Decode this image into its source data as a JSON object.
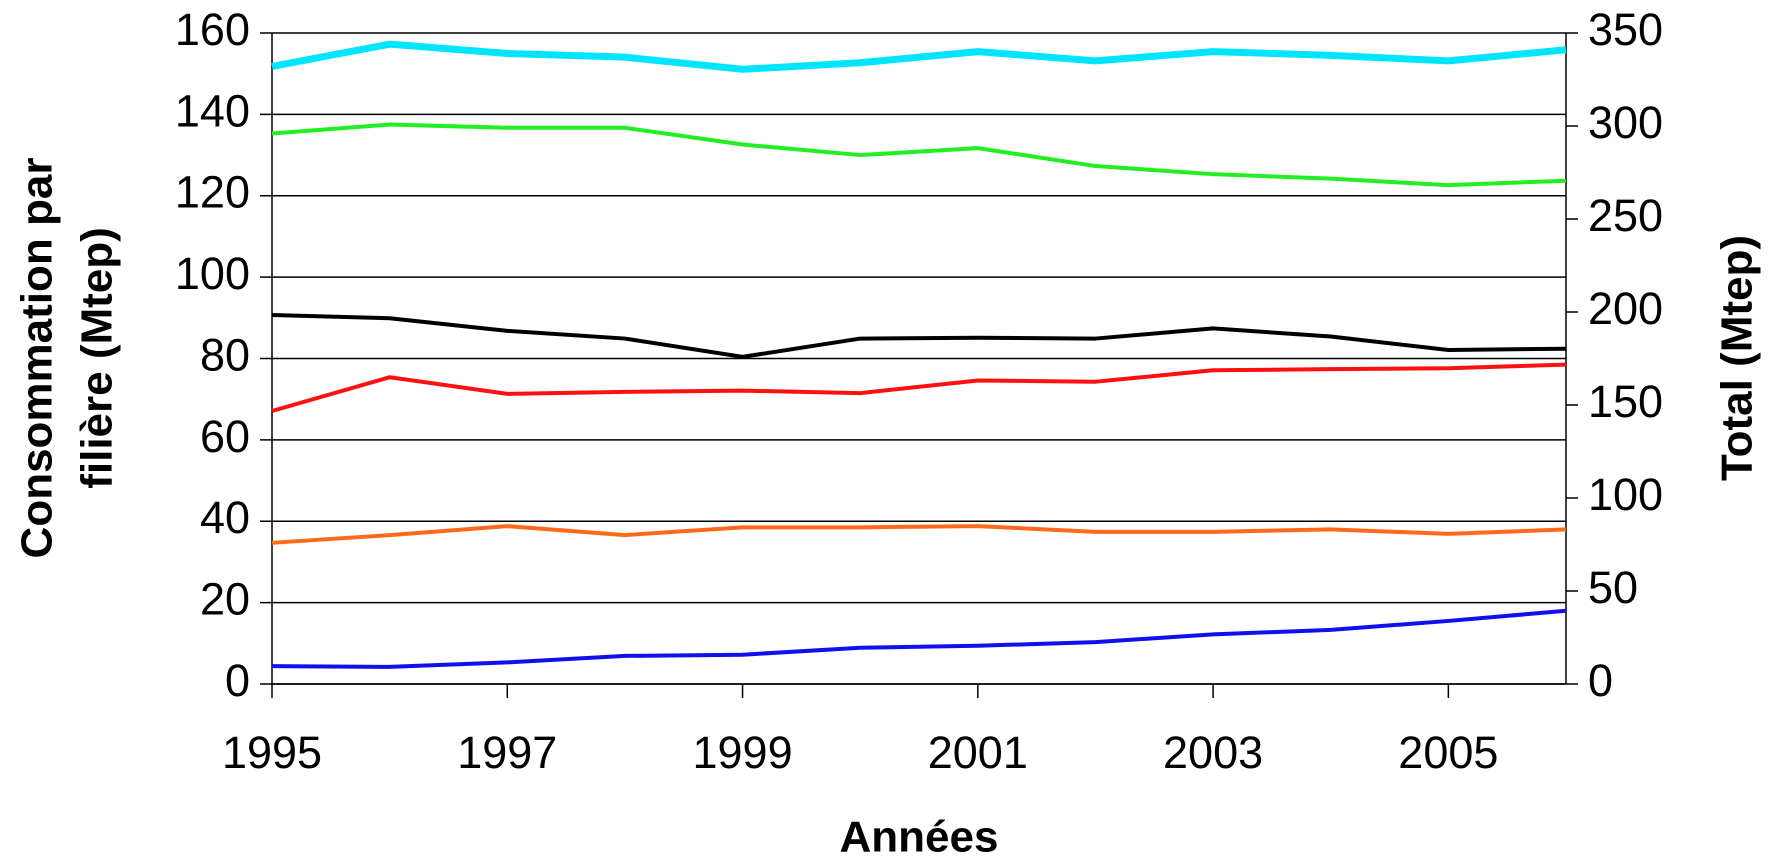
{
  "chart_data": {
    "type": "line",
    "x_label": "Années",
    "y_label": [
      "Consommation par",
      "filière (Mtep)"
    ],
    "y2_label": "Total (Mtep)",
    "x": [
      1995,
      1996,
      1997,
      1998,
      1999,
      2000,
      2001,
      2002,
      2003,
      2004,
      2005,
      2006
    ],
    "xlim": [
      1995,
      2006
    ],
    "xticks": [
      1995,
      1997,
      1999,
      2001,
      2003,
      2005
    ],
    "ylim": [
      0,
      160
    ],
    "yticks": [
      0,
      20,
      40,
      60,
      80,
      100,
      120,
      140,
      160
    ],
    "y2lim": [
      0,
      350
    ],
    "y2ticks": [
      0,
      50,
      100,
      150,
      200,
      250,
      300,
      350
    ],
    "grid": true,
    "series": [
      {
        "color": "#00e5ff",
        "axis": "y2",
        "values": [
          332,
          344,
          339,
          337,
          330.5,
          334,
          340,
          335,
          340,
          338,
          335,
          341
        ]
      },
      {
        "color": "#22ee22",
        "values": [
          135.3,
          137.5,
          136.7,
          136.7,
          132.6,
          130,
          131.7,
          127.3,
          125.3,
          124.2,
          122.6,
          123.7
        ]
      },
      {
        "color": "#000000",
        "values": [
          90.7,
          89.9,
          86.8,
          84.9,
          80.4,
          84.9,
          85.1,
          84.9,
          87.4,
          85.4,
          82.1,
          82.4
        ]
      },
      {
        "color": "#ff1010",
        "values": [
          67.1,
          75.4,
          71.3,
          71.8,
          72.1,
          71.5,
          74.6,
          74.3,
          77.1,
          77.4,
          77.6,
          78.5
        ]
      },
      {
        "color": "#ff6a1a",
        "values": [
          34.7,
          36.6,
          38.8,
          36.6,
          38.5,
          38.5,
          38.8,
          37.4,
          37.4,
          38,
          36.9,
          38
        ]
      },
      {
        "color": "#1010ee",
        "values": [
          4.4,
          4.2,
          5.3,
          6.9,
          7.2,
          8.9,
          9.4,
          10.3,
          12.2,
          13.3,
          15.5,
          18
        ]
      }
    ]
  }
}
